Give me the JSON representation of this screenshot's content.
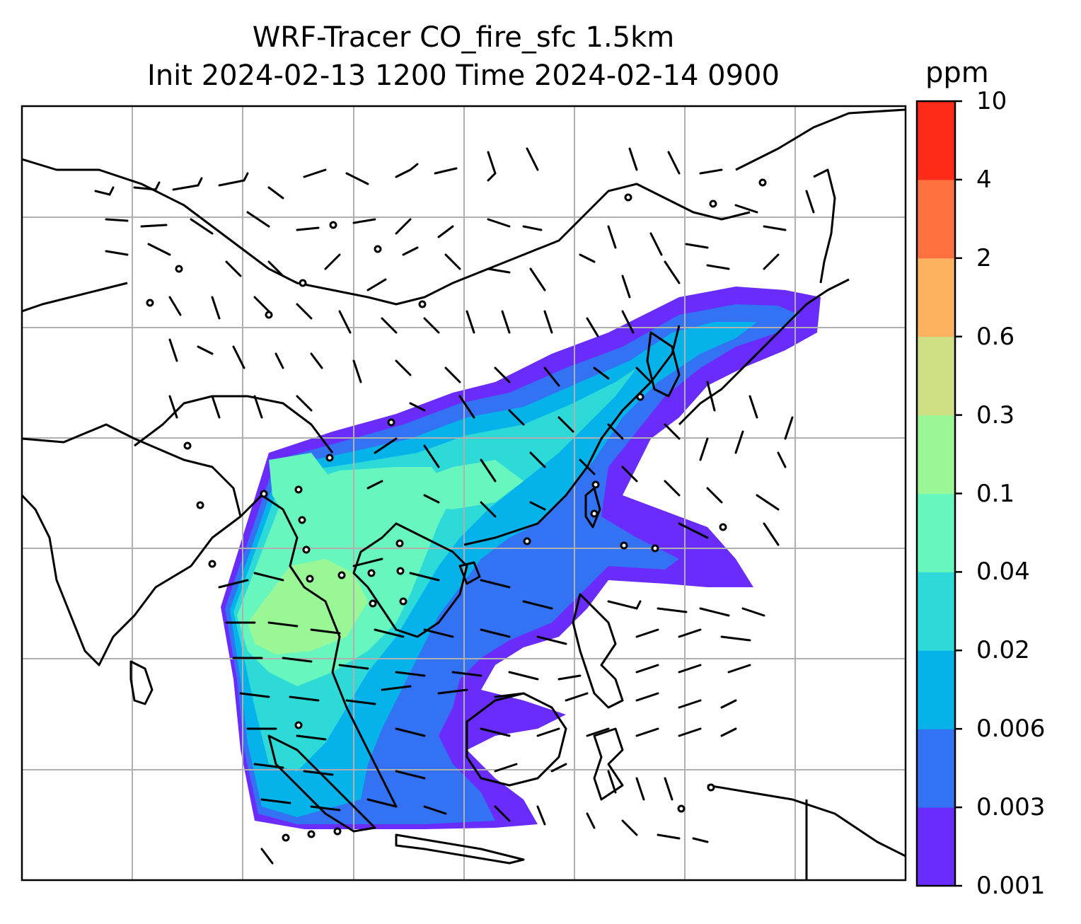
{
  "title": {
    "line1": "WRF-Tracer CO_fire_sfc 1.5km",
    "line2": "Init 2024-02-13 1200 Time 2024-02-14 0900"
  },
  "colorbar": {
    "unit": "ppm",
    "ticks": [
      "0.001",
      "0.003",
      "0.006",
      "0.02",
      "0.04",
      "0.1",
      "0.3",
      "0.6",
      "2",
      "4",
      "10"
    ],
    "colors": [
      "#6a2cfa",
      "#3372f2",
      "#06b2ea",
      "#2ddad8",
      "#67f6bd",
      "#99f795",
      "#cfe084",
      "#fdb262",
      "#ff7240",
      "#ff2a17"
    ]
  },
  "map": {
    "gridlines": true,
    "coastline_color": "#000000",
    "grid_color": "#b0b0b0",
    "overlay": "wind barbs"
  }
}
